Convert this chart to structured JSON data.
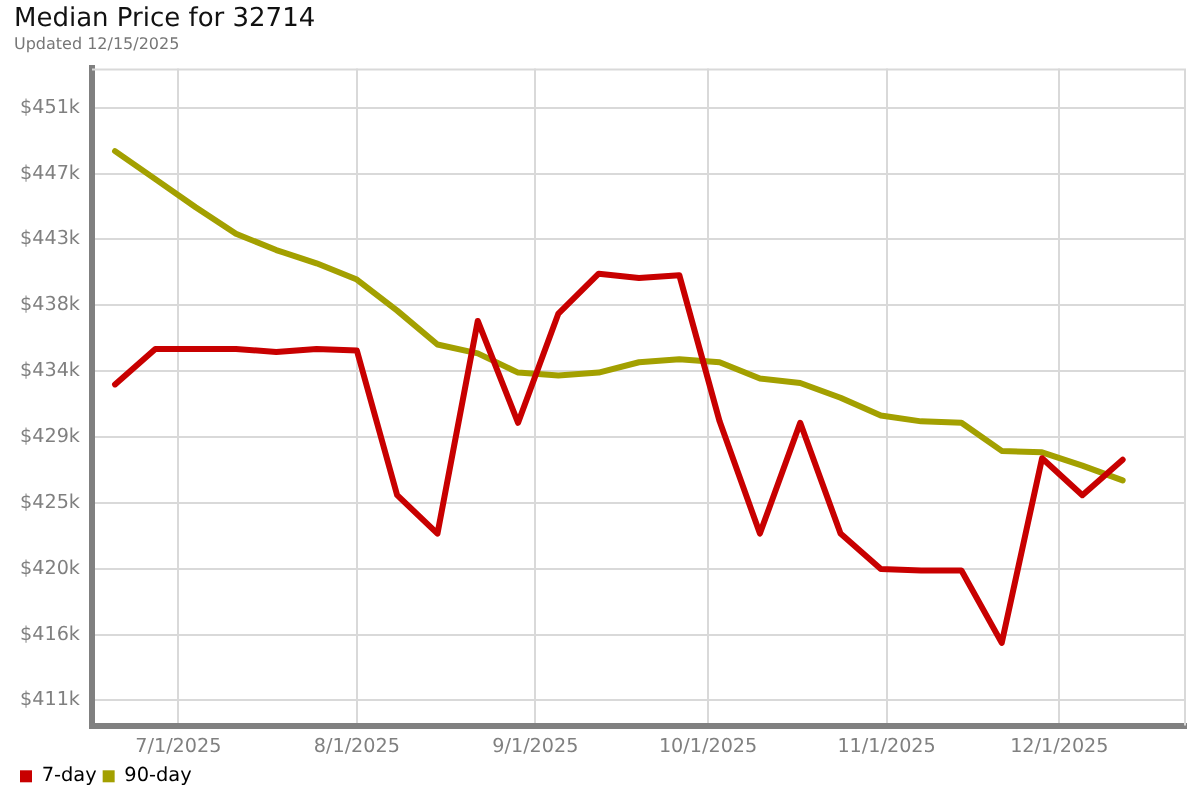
{
  "chart_data": {
    "type": "line",
    "title": "Median Price for 32714",
    "subtitle": "Updated 12/15/2025",
    "x": [
      "2025-06-20",
      "2025-06-27",
      "2025-07-04",
      "2025-07-11",
      "2025-07-18",
      "2025-07-25",
      "2025-08-01",
      "2025-08-08",
      "2025-08-15",
      "2025-08-22",
      "2025-08-29",
      "2025-09-05",
      "2025-09-12",
      "2025-09-19",
      "2025-09-26",
      "2025-10-03",
      "2025-10-10",
      "2025-10-17",
      "2025-10-24",
      "2025-10-31",
      "2025-11-07",
      "2025-11-14",
      "2025-11-21",
      "2025-11-28",
      "2025-12-05",
      "2025-12-12"
    ],
    "series": [
      {
        "name": "7-day",
        "color": "#c80000",
        "values": [
          432.7,
          435.1,
          435.1,
          435.1,
          434.9,
          435.1,
          435.0,
          425.2,
          422.6,
          437.0,
          430.1,
          437.5,
          440.2,
          439.9,
          440.1,
          430.2,
          422.6,
          430.1,
          422.6,
          420.2,
          420.1,
          420.1,
          415.2,
          427.7,
          425.2,
          427.6
        ]
      },
      {
        "name": "90-day",
        "color": "#a3a000",
        "values": [
          448.5,
          446.6,
          444.7,
          442.9,
          441.8,
          440.9,
          439.8,
          437.7,
          435.4,
          434.8,
          433.5,
          433.3,
          433.5,
          434.2,
          434.4,
          434.2,
          433.1,
          432.8,
          431.8,
          430.6,
          430.2,
          430.1,
          428.2,
          428.1,
          427.2,
          426.2
        ]
      }
    ],
    "xlim": [
      "2025-06-16",
      "2025-12-23"
    ],
    "xticks": [
      {
        "value": "2025-07-01",
        "label": "7/1/2025"
      },
      {
        "value": "2025-08-01",
        "label": "8/1/2025"
      },
      {
        "value": "2025-09-01",
        "label": "9/1/2025"
      },
      {
        "value": "2025-10-01",
        "label": "10/1/2025"
      },
      {
        "value": "2025-11-01",
        "label": "11/1/2025"
      },
      {
        "value": "2025-12-01",
        "label": "12/1/2025"
      }
    ],
    "ylim": [
      409.6,
      454.1
    ],
    "yticks": [
      {
        "value": 411.3,
        "label": "$411k"
      },
      {
        "value": 415.76,
        "label": "$416k"
      },
      {
        "value": 420.22,
        "label": "$420k"
      },
      {
        "value": 424.68,
        "label": "$425k"
      },
      {
        "value": 429.14,
        "label": "$429k"
      },
      {
        "value": 433.6,
        "label": "$434k"
      },
      {
        "value": 438.06,
        "label": "$438k"
      },
      {
        "value": 442.52,
        "label": "$443k"
      },
      {
        "value": 446.98,
        "label": "$447k"
      },
      {
        "value": 451.44,
        "label": "$451k"
      }
    ],
    "grid": true,
    "legend": "bottom left",
    "marker": "none",
    "line_style": "solid"
  }
}
